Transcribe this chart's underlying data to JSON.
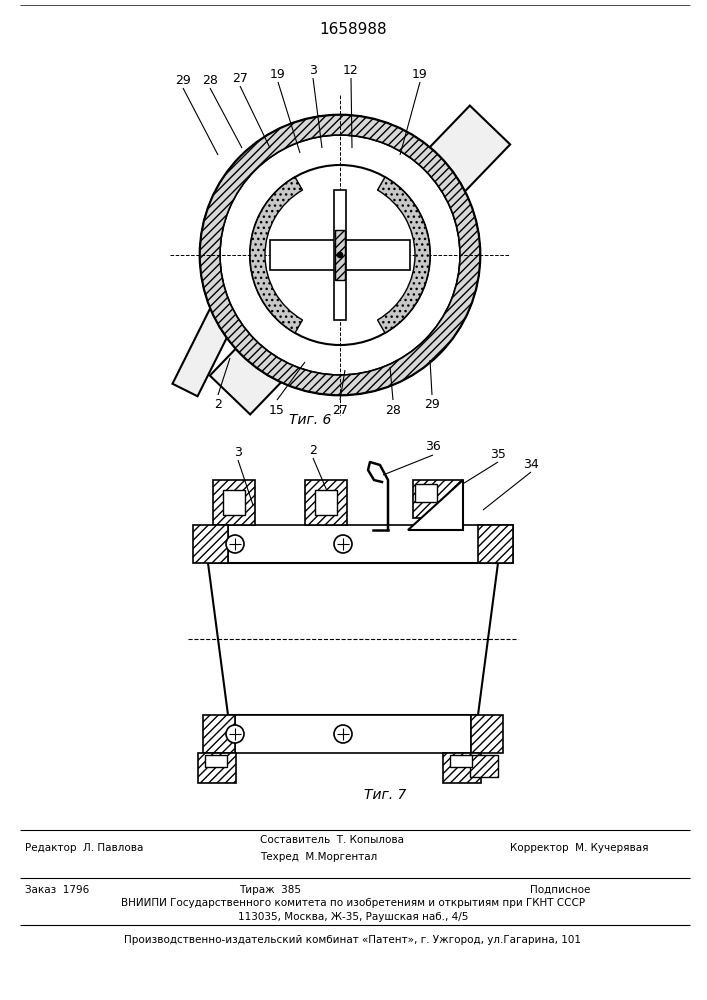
{
  "title_number": "1658988",
  "fig6_label": "Τиг. 6",
  "fig7_label": "Τиг. 7",
  "editor_line": "Редактор  Л. Павлова",
  "composer_line": "Составитель  Т. Копылова",
  "techred_line": "Техред  М.Моргентал",
  "corrector_line": "Корректор  М. Кучерявая",
  "order_line": "Заказ  1796",
  "tirazh_line": "Тираж  385",
  "podpisnoe_line": "Подписное",
  "vnipi_line": "ВНИИПИ Государственного комитета по изобретениям и открытиям при ГКНТ СССР",
  "address_line": "113035, Москва, Ж-35, Раушская наб., 4/5",
  "plant_line": "Производственно-издательский комбинат «Патент», г. Ужгород, ул.Гагарина, 101",
  "bg_color": "#ffffff",
  "line_color": "#000000"
}
